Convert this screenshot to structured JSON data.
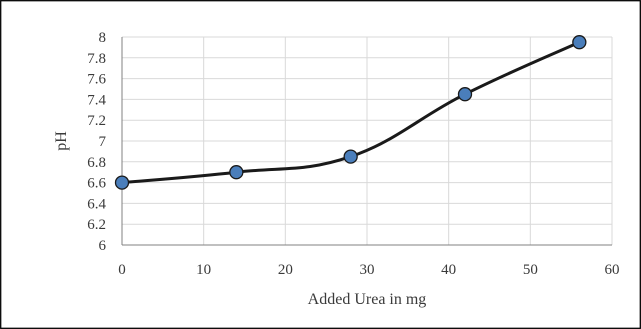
{
  "chart_data": {
    "type": "line",
    "smooth": true,
    "markers": "circle",
    "title": "",
    "xlabel": "Added Urea in mg",
    "ylabel": "pH",
    "xlim": [
      0,
      60
    ],
    "ylim": [
      6,
      8
    ],
    "xticks": [
      0,
      10,
      20,
      30,
      40,
      50,
      60
    ],
    "yticks": [
      6,
      6.2,
      6.4,
      6.6,
      6.8,
      7,
      7.2,
      7.4,
      7.6,
      7.8,
      8
    ],
    "grid": true,
    "legend": "none",
    "series": [
      {
        "x": [
          0,
          14,
          28,
          42,
          56
        ],
        "y": [
          6.6,
          6.7,
          6.85,
          7.45,
          7.95
        ]
      }
    ],
    "colors": {
      "line": "#1a1a1a",
      "marker": "#4a7ebb",
      "grid": "#d9d9d9"
    }
  }
}
